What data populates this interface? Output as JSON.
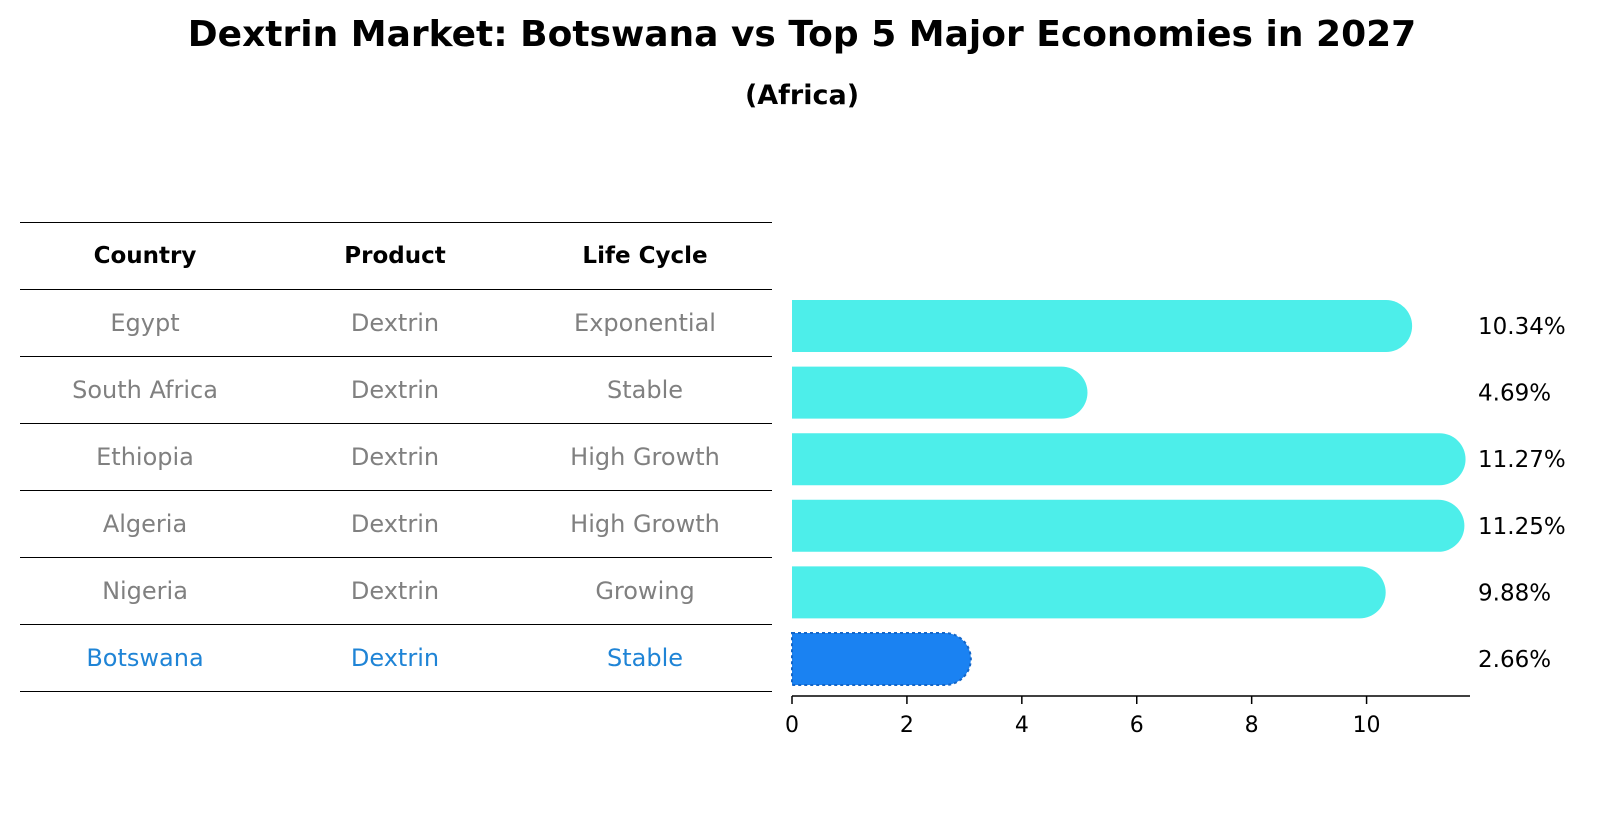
{
  "title": "Dextrin Market: Botswana vs Top 5 Major Economies in 2027",
  "subtitle": "(Africa)",
  "table": {
    "headers": [
      "Country",
      "Product",
      "Life Cycle"
    ],
    "rows": [
      [
        "Egypt",
        "Dextrin",
        "Exponential"
      ],
      [
        "South Africa",
        "Dextrin",
        "Stable"
      ],
      [
        "Ethiopia",
        "Dextrin",
        "High Growth"
      ],
      [
        "Algeria",
        "Dextrin",
        "High Growth"
      ],
      [
        "Nigeria",
        "Dextrin",
        "Growing"
      ],
      [
        "Botswana",
        "Dextrin",
        "Stable"
      ]
    ]
  },
  "chart_data": {
    "type": "bar",
    "orientation": "horizontal",
    "categories": [
      "Egypt",
      "South Africa",
      "Ethiopia",
      "Algeria",
      "Nigeria",
      "Botswana"
    ],
    "values": [
      10.34,
      4.69,
      11.27,
      11.25,
      9.88,
      2.66
    ],
    "value_labels": [
      "10.34%",
      "4.69%",
      "11.27%",
      "11.25%",
      "9.88%",
      "2.66%"
    ],
    "highlight": "Botswana",
    "xlim": [
      0,
      11.8
    ],
    "xticks": [
      0,
      2,
      4,
      6,
      8,
      10
    ],
    "colors": {
      "default": "#4deeea",
      "highlight": "#1a82f2"
    }
  }
}
